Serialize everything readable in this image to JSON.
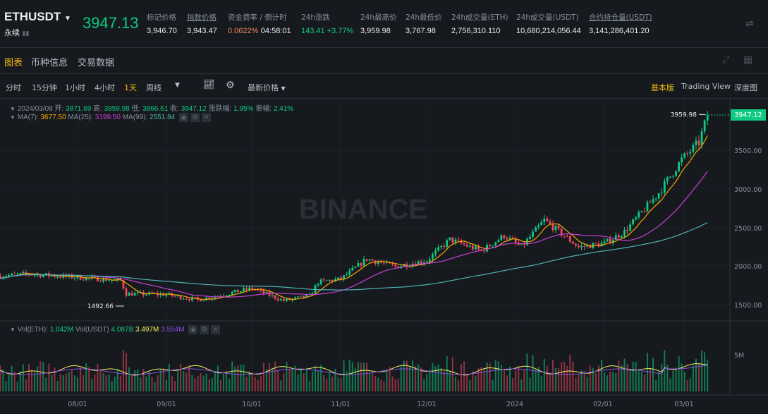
{
  "header": {
    "symbol": "ETHUSDT",
    "contract": "永续",
    "last_price": "3947.13",
    "stats": [
      {
        "label": "标记价格",
        "value": "3,946.70"
      },
      {
        "label": "指数价格",
        "value": "3,943.47",
        "underline": true
      },
      {
        "label": "资金费率 / 倒计时",
        "value": "0.0622%",
        "value2": "04:58:01"
      },
      {
        "label": "24h涨跌",
        "value": "143.41 +3.77%"
      },
      {
        "label": "24h最高价",
        "value": "3,959.98"
      },
      {
        "label": "24h最低价",
        "value": "3,767.98"
      },
      {
        "label": "24h成交量(ETH)",
        "value": "2,756,310.110"
      },
      {
        "label": "24h成交量(USDT)",
        "value": "10,680,214,056.44"
      },
      {
        "label": "合约持仓量(USDT)",
        "value": "3,141,286,401.20"
      }
    ]
  },
  "tabs": [
    "图表",
    "币种信息",
    "交易数据"
  ],
  "toolbar": {
    "intervals": [
      "分时",
      "15分钟",
      "1小时",
      "4小时",
      "1天",
      "周线"
    ],
    "active": "1天",
    "price_type": "最新价格",
    "views": [
      "基本版",
      "Trading View",
      "深度图"
    ],
    "active_view": "基本版"
  },
  "colors": {
    "up": "#0ecb81",
    "down": "#f6465d",
    "accent": "#f0b90b",
    "ma7": "#f7a600",
    "ma25": "#c63fd0",
    "ma99": "#4fb3b3"
  },
  "ohlc": {
    "date": "2024/03/08",
    "open_l": "开:",
    "open": "3871.69",
    "high_l": "高:",
    "high": "3959.98",
    "low_l": "低:",
    "low": "3866.61",
    "close_l": "收:",
    "close": "3947.12",
    "chg_l": "涨跌幅:",
    "chg": "1.95%",
    "amp_l": "振幅:",
    "amp": "2.41%"
  },
  "ma": {
    "ma7_l": "MA(7):",
    "ma7": "3677.50",
    "ma25_l": "MA(25):",
    "ma25": "3199.50",
    "ma99_l": "MA(99):",
    "ma99": "2551.84"
  },
  "vol": {
    "eth_l": "Vol(ETH):",
    "eth": "1.042M",
    "usdt_l": "Vol(USDT)",
    "usdt": "4.087B",
    "ma1": "3.497M",
    "ma2": "3.554M"
  },
  "price_axis": [
    "3500.00",
    "3000.00",
    "2500.00",
    "2000.00",
    "1500.00"
  ],
  "vol_axis": "5M",
  "time_axis": [
    "08/01",
    "09/01",
    "10/01",
    "11/01",
    "12/01",
    "2024",
    "02/01",
    "03/01"
  ],
  "current_price_tag": "3947.12",
  "high_label": "3959.98",
  "low_label": "1492.66",
  "watermark": "BINANCE",
  "price_path": [
    [
      "2023-07-05",
      1880
    ],
    [
      "2023-07-15",
      1905
    ],
    [
      "2023-08-01",
      1860
    ],
    [
      "2023-08-16",
      1820
    ],
    [
      "2023-08-18",
      1650
    ],
    [
      "2023-09-01",
      1640
    ],
    [
      "2023-09-12",
      1570
    ],
    [
      "2023-10-01",
      1720
    ],
    [
      "2023-10-12",
      1560
    ],
    [
      "2023-10-21",
      1620
    ],
    [
      "2023-10-24",
      1800
    ],
    [
      "2023-11-01",
      1840
    ],
    [
      "2023-11-10",
      2100
    ],
    [
      "2023-11-20",
      2000
    ],
    [
      "2023-12-01",
      2080
    ],
    [
      "2023-12-09",
      2350
    ],
    [
      "2023-12-20",
      2200
    ],
    [
      "2023-12-28",
      2400
    ],
    [
      "2024-01-03",
      2250
    ],
    [
      "2024-01-11",
      2600
    ],
    [
      "2024-01-23",
      2250
    ],
    [
      "2024-02-01",
      2300
    ],
    [
      "2024-02-08",
      2450
    ],
    [
      "2024-02-20",
      2950
    ],
    [
      "2024-02-28",
      3380
    ],
    [
      "2024-03-05",
      3600
    ],
    [
      "2024-03-08",
      3947
    ]
  ]
}
